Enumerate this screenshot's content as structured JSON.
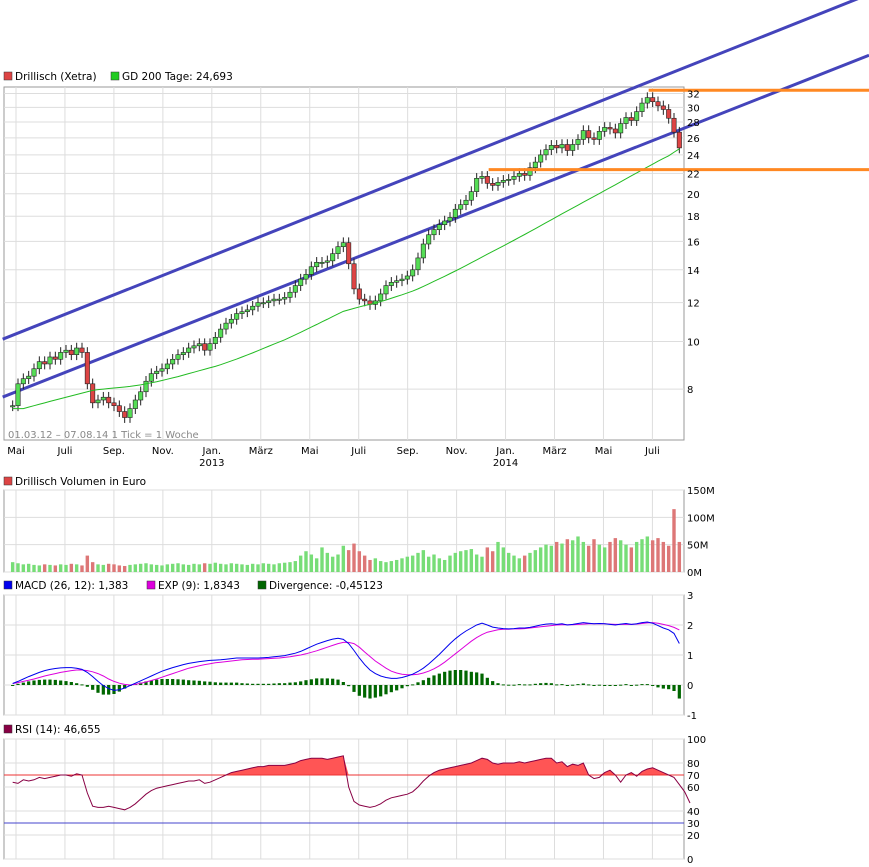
{
  "colors": {
    "up": "#55dd55",
    "down": "#dd4444",
    "channel": "#4444bb",
    "hline": "#ff8822",
    "ma": "#22bb22",
    "macd": "#0000ee",
    "exp": "#dd00dd",
    "div": "#006600",
    "rsi_fill": "#ff5555",
    "rsi_line": "#880044",
    "grid": "#dddddd"
  },
  "chart_data": [
    {
      "id": "price",
      "type": "candlestick",
      "legend": [
        {
          "label": "Drillisch (Xetra)",
          "color": "#dd4444"
        },
        {
          "label": "GD 200 Tage: 24,693",
          "color": "#22cc22"
        }
      ],
      "info": "01.03.12 – 07.08.14    1 Tick = 1 Woche",
      "scale": "log",
      "ylim": [
        6.3,
        33
      ],
      "yticks": [
        8,
        10,
        12,
        14,
        16,
        18,
        20,
        22,
        24,
        26,
        28,
        30,
        32
      ],
      "months": [
        "Mai",
        "Juli",
        "Sep.",
        "Nov.",
        "Jan.",
        "März",
        "Mai",
        "Juli",
        "Sep.",
        "Nov.",
        "Jan.",
        "März",
        "Mai",
        "Juli"
      ],
      "years": [
        {
          "label": "2013",
          "under": 4
        },
        {
          "label": "2014",
          "under": 10
        }
      ],
      "closes": [
        7.4,
        8.2,
        8.4,
        8.5,
        8.8,
        9.1,
        9.0,
        9.3,
        9.2,
        9.5,
        9.6,
        9.4,
        9.7,
        9.5,
        8.2,
        7.5,
        7.6,
        7.7,
        7.5,
        7.4,
        7.2,
        7.0,
        7.3,
        7.6,
        7.9,
        8.3,
        8.6,
        8.7,
        8.8,
        9.0,
        9.2,
        9.4,
        9.5,
        9.7,
        9.8,
        9.9,
        9.6,
        9.9,
        10.2,
        10.6,
        10.9,
        11.1,
        11.4,
        11.5,
        11.6,
        11.8,
        12.0,
        12.0,
        12.1,
        12.2,
        12.2,
        12.3,
        12.6,
        13.0,
        13.4,
        13.7,
        14.2,
        14.5,
        14.5,
        14.6,
        15.1,
        15.6,
        15.9,
        14.4,
        12.8,
        12.2,
        12.1,
        11.9,
        12.1,
        12.5,
        13.0,
        13.2,
        13.3,
        13.4,
        13.6,
        14.0,
        14.8,
        15.8,
        16.5,
        16.9,
        17.3,
        17.6,
        17.9,
        18.6,
        19.0,
        19.4,
        20.2,
        21.5,
        21.7,
        21.0,
        20.8,
        21.1,
        21.3,
        21.4,
        21.7,
        22.0,
        21.8,
        22.6,
        23.2,
        24.0,
        24.6,
        25.1,
        24.8,
        25.2,
        24.5,
        25.2,
        25.8,
        26.9,
        26.0,
        25.8,
        26.8,
        27.3,
        27.1,
        26.6,
        27.8,
        28.6,
        28.2,
        29.4,
        30.6,
        31.4,
        30.8,
        30.2,
        29.7,
        28.5,
        26.7,
        24.8
      ],
      "opens": [
        7.4,
        7.4,
        8.2,
        8.4,
        8.5,
        8.8,
        9.1,
        9.0,
        9.3,
        9.2,
        9.5,
        9.6,
        9.4,
        9.7,
        9.5,
        8.2,
        7.5,
        7.6,
        7.7,
        7.5,
        7.4,
        7.2,
        7.0,
        7.3,
        7.6,
        7.9,
        8.3,
        8.6,
        8.7,
        8.8,
        9.0,
        9.2,
        9.4,
        9.5,
        9.7,
        9.8,
        9.9,
        9.6,
        9.9,
        10.2,
        10.6,
        10.9,
        11.1,
        11.4,
        11.5,
        11.6,
        11.8,
        12.0,
        12.0,
        12.1,
        12.2,
        12.2,
        12.3,
        12.6,
        13.0,
        13.4,
        13.7,
        14.2,
        14.5,
        14.5,
        14.6,
        15.1,
        15.6,
        15.9,
        14.4,
        12.8,
        12.2,
        12.1,
        11.9,
        12.1,
        12.5,
        13.0,
        13.2,
        13.3,
        13.4,
        13.6,
        14.0,
        14.8,
        15.8,
        16.5,
        16.9,
        17.3,
        17.6,
        17.9,
        18.6,
        19.0,
        19.4,
        20.2,
        21.5,
        21.7,
        21.0,
        20.8,
        21.1,
        21.3,
        21.4,
        21.7,
        22.0,
        21.8,
        22.6,
        23.2,
        24.0,
        24.6,
        25.1,
        24.8,
        25.2,
        24.5,
        25.2,
        25.8,
        26.9,
        26.0,
        25.8,
        26.8,
        27.3,
        27.1,
        26.6,
        27.8,
        28.6,
        28.2,
        29.4,
        30.6,
        31.4,
        30.8,
        30.2,
        29.7,
        28.5,
        26.7
      ],
      "ma200": [
        7.3,
        7.3,
        7.3,
        7.35,
        7.4,
        7.45,
        7.5,
        7.55,
        7.6,
        7.65,
        7.7,
        7.75,
        7.8,
        7.85,
        7.9,
        7.95,
        7.98,
        8.0,
        8.02,
        8.04,
        8.06,
        8.08,
        8.1,
        8.13,
        8.16,
        8.2,
        8.24,
        8.28,
        8.33,
        8.38,
        8.43,
        8.48,
        8.54,
        8.6,
        8.66,
        8.72,
        8.78,
        8.84,
        8.9,
        8.97,
        9.05,
        9.13,
        9.21,
        9.3,
        9.39,
        9.48,
        9.58,
        9.68,
        9.78,
        9.88,
        9.98,
        10.08,
        10.2,
        10.32,
        10.44,
        10.57,
        10.7,
        10.83,
        10.97,
        11.1,
        11.24,
        11.38,
        11.52,
        11.6,
        11.68,
        11.76,
        11.84,
        11.9,
        11.98,
        12.06,
        12.15,
        12.25,
        12.35,
        12.45,
        12.56,
        12.67,
        12.8,
        12.95,
        13.1,
        13.26,
        13.42,
        13.58,
        13.75,
        13.92,
        14.1,
        14.28,
        14.47,
        14.66,
        14.86,
        15.06,
        15.26,
        15.46,
        15.66,
        15.87,
        16.08,
        16.3,
        16.52,
        16.75,
        16.98,
        17.22,
        17.46,
        17.7,
        17.95,
        18.2,
        18.45,
        18.7,
        18.96,
        19.22,
        19.48,
        19.75,
        20.02,
        20.3,
        20.58,
        20.86,
        21.15,
        21.45,
        21.75,
        22.05,
        22.36,
        22.67,
        22.98,
        23.3,
        23.6,
        23.9,
        24.3,
        24.69
      ],
      "channel_upper": {
        "x1": 0,
        "y1": 10.3,
        "x2": 127,
        "y2": 36.5
      },
      "channel_lower": {
        "x1": 0,
        "y1": 7.85,
        "x2": 127,
        "y2": 27.5
      },
      "hlines": [
        32.5,
        22.4
      ],
      "hline_from": [
        120,
        90
      ]
    },
    {
      "id": "volume",
      "type": "bar",
      "legend": [
        {
          "label": "Drillisch Volumen in Euro",
          "color": "#dd4444"
        }
      ],
      "ylim": [
        0,
        150
      ],
      "yticks": [
        {
          "v": 0,
          "label": "0M"
        },
        {
          "v": 50,
          "label": "50M"
        },
        {
          "v": 100,
          "label": "100M"
        },
        {
          "v": 150,
          "label": "150M"
        }
      ],
      "values": [
        18,
        16,
        14,
        15,
        13,
        12,
        14,
        13,
        12,
        14,
        13,
        15,
        14,
        12,
        30,
        18,
        14,
        13,
        15,
        14,
        12,
        11,
        13,
        14,
        15,
        16,
        14,
        13,
        12,
        14,
        15,
        16,
        14,
        13,
        15,
        14,
        16,
        15,
        17,
        15,
        14,
        16,
        15,
        14,
        13,
        15,
        14,
        16,
        15,
        14,
        16,
        17,
        18,
        20,
        30,
        38,
        32,
        25,
        45,
        35,
        28,
        32,
        48,
        40,
        52,
        38,
        30,
        22,
        25,
        20,
        18,
        20,
        22,
        25,
        28,
        30,
        35,
        40,
        28,
        32,
        25,
        22,
        30,
        35,
        38,
        40,
        42,
        32,
        28,
        45,
        38,
        55,
        45,
        35,
        30,
        25,
        30,
        35,
        40,
        45,
        50,
        48,
        55,
        52,
        60,
        58,
        65,
        55,
        48,
        60,
        50,
        45,
        55,
        62,
        58,
        50,
        45,
        55,
        60,
        65,
        58,
        62,
        55,
        48,
        115,
        55
      ]
    },
    {
      "id": "macd",
      "type": "line",
      "legend": [
        {
          "label": "MACD (26, 12): 1,383",
          "color": "#0000ee"
        },
        {
          "label": "EXP (9): 1,8343",
          "color": "#dd00dd"
        },
        {
          "label": "Divergence: -0,45123",
          "color": "#006600"
        }
      ],
      "ylim": [
        -1,
        3
      ],
      "yticks": [
        -1,
        0,
        1,
        2,
        3
      ],
      "macd": [
        0.05,
        0.12,
        0.2,
        0.28,
        0.35,
        0.42,
        0.48,
        0.52,
        0.55,
        0.57,
        0.58,
        0.58,
        0.56,
        0.52,
        0.42,
        0.28,
        0.12,
        -0.02,
        -0.12,
        -0.18,
        -0.16,
        -0.1,
        -0.02,
        0.06,
        0.14,
        0.22,
        0.3,
        0.38,
        0.46,
        0.52,
        0.58,
        0.63,
        0.68,
        0.72,
        0.75,
        0.78,
        0.8,
        0.82,
        0.83,
        0.84,
        0.86,
        0.88,
        0.9,
        0.9,
        0.9,
        0.9,
        0.9,
        0.91,
        0.92,
        0.94,
        0.96,
        0.98,
        1.02,
        1.06,
        1.12,
        1.2,
        1.28,
        1.36,
        1.42,
        1.48,
        1.53,
        1.56,
        1.52,
        1.38,
        1.15,
        0.9,
        0.68,
        0.5,
        0.38,
        0.3,
        0.25,
        0.22,
        0.22,
        0.25,
        0.3,
        0.36,
        0.45,
        0.56,
        0.7,
        0.86,
        1.02,
        1.2,
        1.38,
        1.54,
        1.68,
        1.8,
        1.9,
        2.0,
        2.06,
        2.0,
        1.93,
        1.9,
        1.88,
        1.87,
        1.88,
        1.9,
        1.9,
        1.92,
        1.96,
        2.0,
        2.03,
        2.04,
        2.02,
        2.04,
        2.0,
        2.02,
        2.05,
        2.08,
        2.06,
        2.04,
        2.05,
        2.04,
        2.02,
        2.0,
        2.03,
        2.05,
        2.02,
        2.04,
        2.08,
        2.1,
        2.06,
        1.98,
        1.9,
        1.84,
        1.72,
        1.383
      ],
      "exp": [
        0.05,
        0.08,
        0.12,
        0.16,
        0.2,
        0.25,
        0.3,
        0.34,
        0.38,
        0.42,
        0.45,
        0.48,
        0.5,
        0.5,
        0.48,
        0.44,
        0.38,
        0.3,
        0.2,
        0.12,
        0.06,
        0.02,
        0.0,
        0.02,
        0.06,
        0.1,
        0.15,
        0.2,
        0.26,
        0.32,
        0.38,
        0.44,
        0.5,
        0.56,
        0.6,
        0.64,
        0.68,
        0.71,
        0.74,
        0.76,
        0.78,
        0.8,
        0.82,
        0.84,
        0.85,
        0.86,
        0.86,
        0.87,
        0.88,
        0.89,
        0.9,
        0.92,
        0.94,
        0.97,
        1.0,
        1.04,
        1.09,
        1.14,
        1.2,
        1.26,
        1.32,
        1.38,
        1.42,
        1.42,
        1.38,
        1.26,
        1.1,
        0.95,
        0.8,
        0.68,
        0.56,
        0.46,
        0.4,
        0.36,
        0.34,
        0.34,
        0.36,
        0.4,
        0.46,
        0.54,
        0.64,
        0.76,
        0.9,
        1.04,
        1.18,
        1.32,
        1.46,
        1.58,
        1.68,
        1.76,
        1.8,
        1.84,
        1.86,
        1.86,
        1.87,
        1.87,
        1.88,
        1.9,
        1.92,
        1.94,
        1.96,
        1.98,
        2.0,
        2.01,
        2.01,
        2.01,
        2.02,
        2.03,
        2.04,
        2.04,
        2.04,
        2.04,
        2.03,
        2.02,
        2.02,
        2.02,
        2.02,
        2.03,
        2.05,
        2.07,
        2.08,
        2.06,
        2.02,
        1.98,
        1.92,
        1.8343
      ]
    },
    {
      "id": "rsi",
      "type": "line",
      "legend": [
        {
          "label": "RSI (14): 46,655",
          "color": "#880044"
        }
      ],
      "ylim": [
        0,
        100
      ],
      "yticks": [
        0,
        20,
        30,
        40,
        60,
        70,
        80,
        100
      ],
      "levels": [
        30,
        70
      ],
      "values": [
        64,
        63,
        66,
        65,
        66,
        68,
        67,
        68,
        69,
        70,
        70,
        69,
        71,
        70,
        55,
        44,
        43,
        43,
        44,
        43,
        42,
        41,
        43,
        46,
        50,
        54,
        57,
        59,
        60,
        61,
        62,
        63,
        64,
        65,
        65,
        66,
        63,
        64,
        66,
        68,
        70,
        72,
        73,
        74,
        75,
        76,
        77,
        77,
        78,
        78,
        78,
        78,
        79,
        80,
        82,
        83,
        84,
        84,
        84,
        83,
        84,
        85,
        86,
        60,
        48,
        45,
        44,
        43,
        44,
        46,
        49,
        51,
        52,
        53,
        54,
        56,
        60,
        65,
        69,
        72,
        74,
        75,
        76,
        77,
        78,
        79,
        80,
        82,
        84,
        83,
        80,
        79,
        80,
        80,
        80,
        81,
        80,
        81,
        82,
        83,
        84,
        84,
        80,
        81,
        77,
        79,
        78,
        80,
        70,
        67,
        68,
        72,
        74,
        70,
        64,
        70,
        72,
        69,
        73,
        75,
        76,
        74,
        72,
        70,
        68,
        62,
        56,
        46.655
      ]
    }
  ]
}
